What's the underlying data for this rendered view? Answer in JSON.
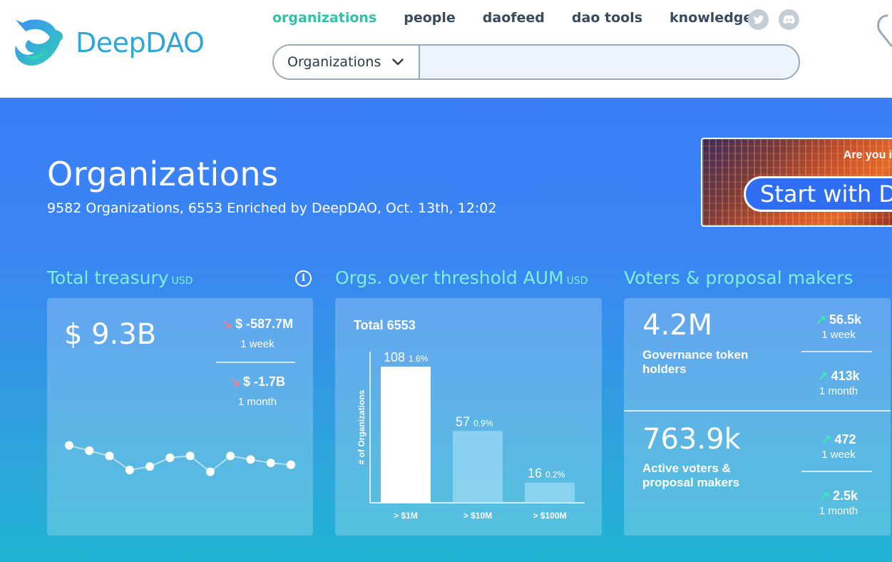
{
  "brand": {
    "name": "DeepDAO"
  },
  "nav": {
    "items": [
      {
        "label": "organizations",
        "active": true
      },
      {
        "label": "people",
        "active": false
      },
      {
        "label": "daofeed",
        "active": false
      },
      {
        "label": "dao tools",
        "active": false
      },
      {
        "label": "knowledge",
        "active": false
      }
    ],
    "social": [
      "twitter-icon",
      "discord-icon"
    ]
  },
  "search": {
    "selected": "Organizations",
    "placeholder": ""
  },
  "hero": {
    "title": "Organizations",
    "subtitle": "9582 Organizations, 6553 Enriched by DeepDAO, Oct. 13th, 12:02"
  },
  "banner": {
    "question": "Are you in",
    "button": "Start with D"
  },
  "treasury": {
    "title": "Total treasury",
    "unit": "USD",
    "total": "$ 9.3B",
    "week": {
      "value": "$ -587.7M",
      "period": "1 week",
      "direction": "down"
    },
    "month": {
      "value": "$ -1.7B",
      "period": "1 month",
      "direction": "down"
    }
  },
  "aum": {
    "title": "Orgs. over threshold AUM",
    "unit": "USD",
    "total_label": "Total 6553"
  },
  "voters": {
    "title": "Voters & proposal makers",
    "holders": {
      "value": "4.2M",
      "label": "Governance token holders",
      "week": {
        "value": "56.5k",
        "period": "1 week"
      },
      "month": {
        "value": "413k",
        "period": "1 month"
      }
    },
    "active": {
      "value": "763.9k",
      "label": "Active voters & proposal makers",
      "week": {
        "value": "472",
        "period": "1 week"
      },
      "month": {
        "value": "2.5k",
        "period": "1 month"
      }
    }
  },
  "colors": {
    "accent": "#2fc3a4",
    "hero": "#3b7ef8",
    "teal_title": "#7ef0d8",
    "down": "#ff7b8a",
    "up": "#3de8b4"
  },
  "chart_data": [
    {
      "type": "line",
      "title": "",
      "x": [
        1,
        2,
        3,
        4,
        5,
        6,
        7,
        8,
        9,
        10,
        11,
        12
      ],
      "series": [
        {
          "values": [
            9.7,
            9.55,
            9.4,
            9.0,
            9.1,
            9.35,
            9.4,
            8.95,
            9.4,
            9.3,
            9.2,
            9.15
          ]
        }
      ],
      "grid": false
    },
    {
      "type": "bar",
      "title": "",
      "ylabel": "# of Organizations",
      "categories": [
        "> $1M",
        "> $10M",
        "> $100M"
      ],
      "values": [
        108,
        57,
        16
      ],
      "value_labels": [
        "108",
        "57",
        "16"
      ],
      "percent_labels": [
        "1.6%",
        "0.9%",
        "0.2%"
      ],
      "ylim": [
        0,
        120
      ]
    }
  ]
}
